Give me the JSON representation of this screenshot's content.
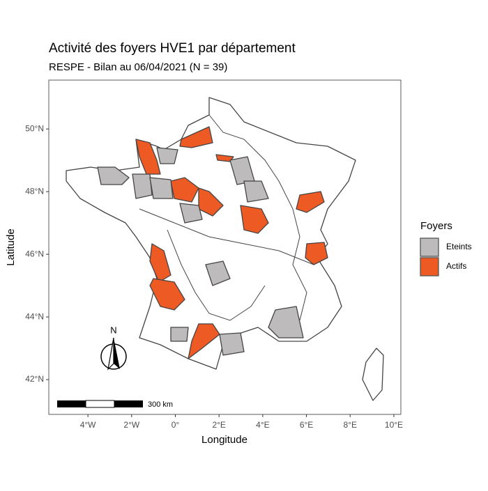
{
  "chart_data": {
    "type": "map",
    "title": "Activité des foyers HVE1 par département",
    "subtitle": "RESPE - Bilan au 06/04/2021 (N = 39)",
    "x_label": "Longitude",
    "y_label": "Latitude",
    "xlim": [
      -5.79,
      10.32
    ],
    "ylim": [
      40.89,
      51.56
    ],
    "xticks": [
      {
        "value": -4,
        "label": "4°W"
      },
      {
        "value": -2,
        "label": "2°W"
      },
      {
        "value": 0,
        "label": "0°"
      },
      {
        "value": 2,
        "label": "2°E"
      },
      {
        "value": 4,
        "label": "4°E"
      },
      {
        "value": 6,
        "label": "6°E"
      },
      {
        "value": 8,
        "label": "8°E"
      },
      {
        "value": 10,
        "label": "10°E"
      }
    ],
    "yticks": [
      {
        "value": 42,
        "label": "42°N"
      },
      {
        "value": 44,
        "label": "44°N"
      },
      {
        "value": 46,
        "label": "46°N"
      },
      {
        "value": 48,
        "label": "48°N"
      },
      {
        "value": 50,
        "label": "50°N"
      }
    ],
    "legend_title": "Foyers",
    "series": [
      {
        "name": "Eteints",
        "color": "#bdbbbb"
      },
      {
        "name": "Actifs",
        "color": "#ee5a24"
      }
    ],
    "scale_bar": "300 km",
    "north": "N"
  }
}
